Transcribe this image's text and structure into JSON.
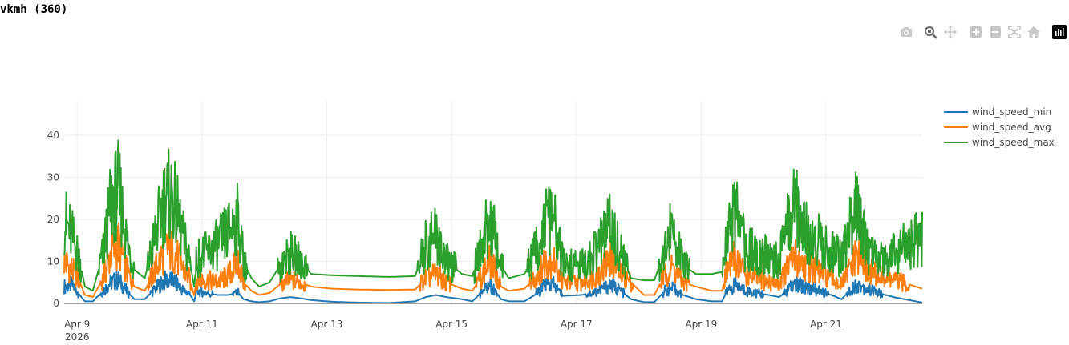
{
  "page": {
    "title": "vkmh (360)"
  },
  "modebar": {
    "buttons": [
      {
        "name": "camera-icon",
        "label": "Download plot as a png"
      },
      {
        "name": "zoom-icon",
        "label": "Zoom"
      },
      {
        "name": "pan-icon",
        "label": "Pan"
      },
      {
        "name": "zoom-in-icon",
        "label": "Zoom in"
      },
      {
        "name": "zoom-out-icon",
        "label": "Zoom out"
      },
      {
        "name": "autoscale-icon",
        "label": "Autoscale"
      },
      {
        "name": "home-icon",
        "label": "Reset axes"
      },
      {
        "name": "plotly-logo-icon",
        "label": "Produced with Plotly"
      }
    ],
    "colors": {
      "inactive": "#c8c8c8",
      "active": "#707070",
      "logo_bg": "#000000"
    }
  },
  "chart_data": {
    "type": "line",
    "title": "",
    "xlabel": "",
    "ylabel": "",
    "x_type": "date",
    "xlim": [
      "2026-04-08 19:00",
      "2026-04-22 13:00"
    ],
    "ylim": [
      0,
      48
    ],
    "grid": true,
    "legend_position": "top-right",
    "x_ticks": [
      {
        "value": "2026-04-09",
        "label": "Apr 9",
        "sublabel": "2026"
      },
      {
        "value": "2026-04-11",
        "label": "Apr 11"
      },
      {
        "value": "2026-04-13",
        "label": "Apr 13"
      },
      {
        "value": "2026-04-15",
        "label": "Apr 15"
      },
      {
        "value": "2026-04-17",
        "label": "Apr 17"
      },
      {
        "value": "2026-04-19",
        "label": "Apr 19"
      },
      {
        "value": "2026-04-21",
        "label": "Apr 21"
      }
    ],
    "y_ticks": [
      0,
      10,
      20,
      30,
      40
    ],
    "series": [
      {
        "name": "wind_speed_min",
        "color": "#1f77b4",
        "points": [
          [
            "2026-04-08 19:00",
            4
          ],
          [
            "2026-04-08 22:00",
            4.5
          ],
          [
            "2026-04-09 01:00",
            2
          ],
          [
            "2026-04-09 03:00",
            0.5
          ],
          [
            "2026-04-09 06:00",
            0.5
          ],
          [
            "2026-04-09 10:00",
            3
          ],
          [
            "2026-04-09 13:00",
            5
          ],
          [
            "2026-04-09 16:00",
            5.5
          ],
          [
            "2026-04-09 19:00",
            3
          ],
          [
            "2026-04-09 22:00",
            1
          ],
          [
            "2026-04-10 02:00",
            1
          ],
          [
            "2026-04-10 06:00",
            3.5
          ],
          [
            "2026-04-10 10:00",
            5.5
          ],
          [
            "2026-04-10 13:00",
            5.5
          ],
          [
            "2026-04-10 17:00",
            3
          ],
          [
            "2026-04-10 19:00",
            2.5
          ],
          [
            "2026-04-10 21:00",
            0.5
          ],
          [
            "2026-04-10 22:00",
            3
          ],
          [
            "2026-04-11 02:00",
            2.5
          ],
          [
            "2026-04-11 06:00",
            2
          ],
          [
            "2026-04-11 10:00",
            2
          ],
          [
            "2026-04-11 14:00",
            2.5
          ],
          [
            "2026-04-11 16:00",
            1
          ],
          [
            "2026-04-11 19:00",
            0.5
          ],
          [
            "2026-04-11 22:00",
            0.3
          ],
          [
            "2026-04-12 02:00",
            0.5
          ],
          [
            "2026-04-12 06:00",
            1.2
          ],
          [
            "2026-04-12 10:00",
            1.5
          ],
          [
            "2026-04-12 14:00",
            1.2
          ],
          [
            "2026-04-12 18:00",
            0.8
          ],
          [
            "2026-04-13 02:00",
            0.4
          ],
          [
            "2026-04-13 12:00",
            0.2
          ],
          [
            "2026-04-14 00:00",
            0.1
          ],
          [
            "2026-04-14 10:00",
            0.5
          ],
          [
            "2026-04-14 14:00",
            1.5
          ],
          [
            "2026-04-14 18:00",
            2
          ],
          [
            "2026-04-14 22:00",
            1.5
          ],
          [
            "2026-04-15 04:00",
            1
          ],
          [
            "2026-04-15 08:00",
            0.5
          ],
          [
            "2026-04-15 12:00",
            3
          ],
          [
            "2026-04-15 15:00",
            4.5
          ],
          [
            "2026-04-15 19:00",
            1
          ],
          [
            "2026-04-15 22:00",
            0.5
          ],
          [
            "2026-04-16 04:00",
            0.5
          ],
          [
            "2026-04-16 08:00",
            2
          ],
          [
            "2026-04-16 12:00",
            4.5
          ],
          [
            "2026-04-16 15:00",
            4.5
          ],
          [
            "2026-04-16 19:00",
            1.8
          ],
          [
            "2026-04-17 02:00",
            2
          ],
          [
            "2026-04-17 06:00",
            2.5
          ],
          [
            "2026-04-17 10:00",
            3.5
          ],
          [
            "2026-04-17 13:00",
            4.5
          ],
          [
            "2026-04-17 17:00",
            3
          ],
          [
            "2026-04-17 21:00",
            1
          ],
          [
            "2026-04-18 02:00",
            0.3
          ],
          [
            "2026-04-18 06:00",
            0.3
          ],
          [
            "2026-04-18 10:00",
            3
          ],
          [
            "2026-04-18 13:00",
            3.5
          ],
          [
            "2026-04-18 17:00",
            2
          ],
          [
            "2026-04-18 22:00",
            1
          ],
          [
            "2026-04-19 04:00",
            0.5
          ],
          [
            "2026-04-19 08:00",
            0.5
          ],
          [
            "2026-04-19 10:00",
            3
          ],
          [
            "2026-04-19 13:00",
            4.5
          ],
          [
            "2026-04-19 17:00",
            3
          ],
          [
            "2026-04-19 21:00",
            2.5
          ],
          [
            "2026-04-20 02:00",
            2
          ],
          [
            "2026-04-20 06:00",
            1.5
          ],
          [
            "2026-04-20 09:00",
            3
          ],
          [
            "2026-04-20 12:00",
            4.5
          ],
          [
            "2026-04-20 17:00",
            4
          ],
          [
            "2026-04-20 21:00",
            3
          ],
          [
            "2026-04-21 02:00",
            2
          ],
          [
            "2026-04-21 06:00",
            1
          ],
          [
            "2026-04-21 09:00",
            3
          ],
          [
            "2026-04-21 12:00",
            4.5
          ],
          [
            "2026-04-21 16:00",
            3.5
          ],
          [
            "2026-04-21 20:00",
            2.5
          ],
          [
            "2026-04-22 02:00",
            1.5
          ],
          [
            "2026-04-22 08:00",
            0.8
          ],
          [
            "2026-04-22 13:00",
            0.2
          ]
        ]
      },
      {
        "name": "wind_speed_avg",
        "color": "#ff7f0e",
        "points": [
          [
            "2026-04-08 19:00",
            10
          ],
          [
            "2026-04-08 22:00",
            8
          ],
          [
            "2026-04-09 01:00",
            5
          ],
          [
            "2026-04-09 03:00",
            2
          ],
          [
            "2026-04-09 06:00",
            1.5
          ],
          [
            "2026-04-09 10:00",
            6
          ],
          [
            "2026-04-09 13:00",
            12
          ],
          [
            "2026-04-09 16:00",
            14
          ],
          [
            "2026-04-09 19:00",
            8
          ],
          [
            "2026-04-09 22:00",
            4
          ],
          [
            "2026-04-10 02:00",
            3
          ],
          [
            "2026-04-10 06:00",
            8
          ],
          [
            "2026-04-10 10:00",
            13
          ],
          [
            "2026-04-10 13:00",
            12.5
          ],
          [
            "2026-04-10 17:00",
            8
          ],
          [
            "2026-04-10 19:00",
            6
          ],
          [
            "2026-04-10 21:00",
            2
          ],
          [
            "2026-04-10 22:00",
            6
          ],
          [
            "2026-04-11 02:00",
            5.5
          ],
          [
            "2026-04-11 06:00",
            5
          ],
          [
            "2026-04-11 10:00",
            6.5
          ],
          [
            "2026-04-11 14:00",
            10
          ],
          [
            "2026-04-11 16:00",
            5
          ],
          [
            "2026-04-11 19:00",
            3
          ],
          [
            "2026-04-11 22:00",
            2
          ],
          [
            "2026-04-12 02:00",
            2.5
          ],
          [
            "2026-04-12 06:00",
            4.5
          ],
          [
            "2026-04-12 10:00",
            5.5
          ],
          [
            "2026-04-12 14:00",
            5
          ],
          [
            "2026-04-12 18:00",
            4
          ],
          [
            "2026-04-13 02:00",
            3.5
          ],
          [
            "2026-04-13 12:00",
            3.3
          ],
          [
            "2026-04-14 00:00",
            3.2
          ],
          [
            "2026-04-14 10:00",
            3.3
          ],
          [
            "2026-04-14 14:00",
            6
          ],
          [
            "2026-04-14 18:00",
            7
          ],
          [
            "2026-04-14 22:00",
            5
          ],
          [
            "2026-04-15 04:00",
            3.5
          ],
          [
            "2026-04-15 08:00",
            3
          ],
          [
            "2026-04-15 12:00",
            7
          ],
          [
            "2026-04-15 15:00",
            10
          ],
          [
            "2026-04-15 19:00",
            4
          ],
          [
            "2026-04-15 22:00",
            3
          ],
          [
            "2026-04-16 04:00",
            3.5
          ],
          [
            "2026-04-16 08:00",
            6
          ],
          [
            "2026-04-16 12:00",
            10
          ],
          [
            "2026-04-16 15:00",
            10.5
          ],
          [
            "2026-04-16 19:00",
            5
          ],
          [
            "2026-04-17 02:00",
            5
          ],
          [
            "2026-04-17 06:00",
            6
          ],
          [
            "2026-04-17 10:00",
            8
          ],
          [
            "2026-04-17 13:00",
            11
          ],
          [
            "2026-04-17 17:00",
            7
          ],
          [
            "2026-04-17 21:00",
            5
          ],
          [
            "2026-04-18 02:00",
            2
          ],
          [
            "2026-04-18 06:00",
            2
          ],
          [
            "2026-04-18 10:00",
            7
          ],
          [
            "2026-04-18 13:00",
            8.5
          ],
          [
            "2026-04-18 17:00",
            5
          ],
          [
            "2026-04-18 22:00",
            4
          ],
          [
            "2026-04-19 04:00",
            3
          ],
          [
            "2026-04-19 08:00",
            3
          ],
          [
            "2026-04-19 10:00",
            8
          ],
          [
            "2026-04-19 13:00",
            11
          ],
          [
            "2026-04-19 17:00",
            7
          ],
          [
            "2026-04-19 21:00",
            6
          ],
          [
            "2026-04-20 02:00",
            5
          ],
          [
            "2026-04-20 06:00",
            5
          ],
          [
            "2026-04-20 09:00",
            8
          ],
          [
            "2026-04-20 12:00",
            11
          ],
          [
            "2026-04-20 17:00",
            9
          ],
          [
            "2026-04-20 21:00",
            7.5
          ],
          [
            "2026-04-21 02:00",
            6
          ],
          [
            "2026-04-21 06:00",
            4.5
          ],
          [
            "2026-04-21 09:00",
            8
          ],
          [
            "2026-04-21 12:00",
            11.5
          ],
          [
            "2026-04-21 16:00",
            8
          ],
          [
            "2026-04-21 20:00",
            6.5
          ],
          [
            "2026-04-22 02:00",
            5.5
          ],
          [
            "2026-04-22 08:00",
            4.5
          ],
          [
            "2026-04-22 13:00",
            3.5
          ]
        ]
      },
      {
        "name": "wind_speed_max",
        "color": "#2ca02c",
        "points": [
          [
            "2026-04-08 19:00",
            20
          ],
          [
            "2026-04-08 22:00",
            16
          ],
          [
            "2026-04-09 01:00",
            10
          ],
          [
            "2026-04-09 03:00",
            4
          ],
          [
            "2026-04-09 06:00",
            3
          ],
          [
            "2026-04-09 10:00",
            12
          ],
          [
            "2026-04-09 13:00",
            24
          ],
          [
            "2026-04-09 16:00",
            27
          ],
          [
            "2026-04-09 19:00",
            15
          ],
          [
            "2026-04-09 22:00",
            8
          ],
          [
            "2026-04-10 02:00",
            6
          ],
          [
            "2026-04-10 06:00",
            16
          ],
          [
            "2026-04-10 10:00",
            26
          ],
          [
            "2026-04-10 13:00",
            25
          ],
          [
            "2026-04-10 17:00",
            15
          ],
          [
            "2026-04-10 19:00",
            11
          ],
          [
            "2026-04-10 21:00",
            4
          ],
          [
            "2026-04-10 22:00",
            11
          ],
          [
            "2026-04-11 02:00",
            12
          ],
          [
            "2026-04-11 06:00",
            14
          ],
          [
            "2026-04-11 10:00",
            17
          ],
          [
            "2026-04-11 14:00",
            20
          ],
          [
            "2026-04-11 16:00",
            10
          ],
          [
            "2026-04-11 19:00",
            6
          ],
          [
            "2026-04-11 22:00",
            4
          ],
          [
            "2026-04-12 02:00",
            5
          ],
          [
            "2026-04-12 06:00",
            9
          ],
          [
            "2026-04-12 10:00",
            12
          ],
          [
            "2026-04-12 14:00",
            10
          ],
          [
            "2026-04-12 18:00",
            7
          ],
          [
            "2026-04-13 02:00",
            6.7
          ],
          [
            "2026-04-13 12:00",
            6.5
          ],
          [
            "2026-04-14 00:00",
            6.3
          ],
          [
            "2026-04-14 10:00",
            6.5
          ],
          [
            "2026-04-14 14:00",
            14
          ],
          [
            "2026-04-14 18:00",
            16
          ],
          [
            "2026-04-14 22:00",
            10
          ],
          [
            "2026-04-15 04:00",
            7
          ],
          [
            "2026-04-15 08:00",
            6.5
          ],
          [
            "2026-04-15 12:00",
            15
          ],
          [
            "2026-04-15 15:00",
            20
          ],
          [
            "2026-04-15 19:00",
            9
          ],
          [
            "2026-04-15 22:00",
            6
          ],
          [
            "2026-04-16 04:00",
            7
          ],
          [
            "2026-04-16 08:00",
            12
          ],
          [
            "2026-04-16 12:00",
            19
          ],
          [
            "2026-04-16 15:00",
            20
          ],
          [
            "2026-04-16 19:00",
            9
          ],
          [
            "2026-04-17 02:00",
            9
          ],
          [
            "2026-04-17 06:00",
            11
          ],
          [
            "2026-04-17 10:00",
            15
          ],
          [
            "2026-04-17 13:00",
            19
          ],
          [
            "2026-04-17 17:00",
            12
          ],
          [
            "2026-04-17 21:00",
            6
          ],
          [
            "2026-04-18 02:00",
            5.5
          ],
          [
            "2026-04-18 06:00",
            5.5
          ],
          [
            "2026-04-18 10:00",
            13
          ],
          [
            "2026-04-18 13:00",
            18
          ],
          [
            "2026-04-18 17:00",
            9
          ],
          [
            "2026-04-18 22:00",
            7
          ],
          [
            "2026-04-19 04:00",
            7
          ],
          [
            "2026-04-19 08:00",
            7.5
          ],
          [
            "2026-04-19 10:00",
            16
          ],
          [
            "2026-04-19 13:00",
            22
          ],
          [
            "2026-04-19 17:00",
            13
          ],
          [
            "2026-04-19 21:00",
            12
          ],
          [
            "2026-04-20 02:00",
            11
          ],
          [
            "2026-04-20 06:00",
            10
          ],
          [
            "2026-04-20 09:00",
            18
          ],
          [
            "2026-04-20 12:00",
            24
          ],
          [
            "2026-04-20 17:00",
            16
          ],
          [
            "2026-04-20 21:00",
            15
          ],
          [
            "2026-04-21 02:00",
            13
          ],
          [
            "2026-04-21 06:00",
            10
          ],
          [
            "2026-04-21 09:00",
            17
          ],
          [
            "2026-04-21 12:00",
            23
          ],
          [
            "2026-04-21 16:00",
            12
          ],
          [
            "2026-04-21 20:00",
            10
          ],
          [
            "2026-04-22 02:00",
            12
          ],
          [
            "2026-04-22 08:00",
            14
          ],
          [
            "2026-04-22 13:00",
            16
          ]
        ]
      }
    ]
  }
}
